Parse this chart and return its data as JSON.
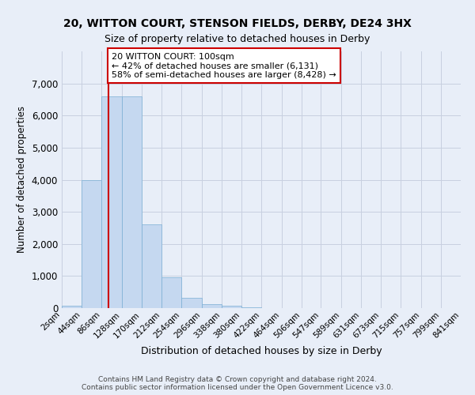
{
  "title1": "20, WITTON COURT, STENSON FIELDS, DERBY, DE24 3HX",
  "title2": "Size of property relative to detached houses in Derby",
  "xlabel": "Distribution of detached houses by size in Derby",
  "ylabel": "Number of detached properties",
  "footer1": "Contains HM Land Registry data © Crown copyright and database right 2024.",
  "footer2": "Contains public sector information licensed under the Open Government Licence v3.0.",
  "bin_edges": [
    2,
    44,
    86,
    128,
    170,
    212,
    254,
    296,
    338,
    380,
    422,
    464,
    506,
    547,
    589,
    631,
    673,
    715,
    757,
    799,
    841
  ],
  "bar_heights": [
    75,
    4000,
    6600,
    6600,
    2600,
    950,
    330,
    125,
    75,
    30,
    10,
    5,
    3,
    2,
    1,
    1,
    0,
    0,
    0,
    0
  ],
  "bar_color": "#c5d8f0",
  "bar_edgecolor": "#7bafd4",
  "grid_color": "#c8d0e0",
  "vline_x": 100,
  "vline_color": "#cc0000",
  "annotation_text": "20 WITTON COURT: 100sqm\n← 42% of detached houses are smaller (6,131)\n58% of semi-detached houses are larger (8,428) →",
  "annotation_box_color": "#ffffff",
  "annotation_box_edgecolor": "#cc0000",
  "ylim": [
    0,
    8000
  ],
  "yticks": [
    0,
    1000,
    2000,
    3000,
    4000,
    5000,
    6000,
    7000
  ],
  "bg_color": "#e8eef8"
}
